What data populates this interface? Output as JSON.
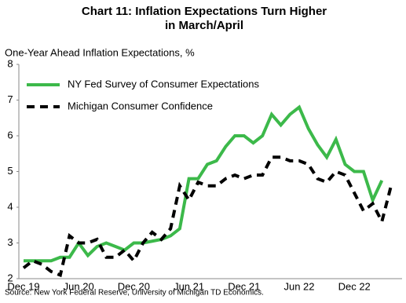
{
  "chart_data": {
    "type": "line",
    "title": "Chart 11: Inflation Expectations Turn Higher in March/April",
    "ylabel": "One-Year Ahead Inflation Expectations, %",
    "source": "Source: New York Federal Reserve, University of Michigan TD Economics.",
    "categories": [
      "Dec 19",
      null,
      null,
      null,
      null,
      null,
      "Jun 20",
      null,
      null,
      null,
      null,
      null,
      "Dec 20",
      null,
      null,
      null,
      null,
      null,
      "Jun 21",
      null,
      null,
      null,
      null,
      null,
      "Dec 21",
      null,
      null,
      null,
      null,
      null,
      "Jun 22",
      null,
      null,
      null,
      null,
      null,
      "Dec 22",
      null,
      null,
      null,
      null
    ],
    "series": [
      {
        "name": "NY Fed Survey of Consumer Expectations",
        "color": "#3cb94a",
        "dash": false,
        "values": [
          2.5,
          2.5,
          2.5,
          2.5,
          2.6,
          2.6,
          3.0,
          2.65,
          2.9,
          3.0,
          2.9,
          2.8,
          3.0,
          3.0,
          3.05,
          3.1,
          3.2,
          3.4,
          4.8,
          4.8,
          5.2,
          5.3,
          5.7,
          6.0,
          6.0,
          5.8,
          6.0,
          6.6,
          6.3,
          6.6,
          6.8,
          6.2,
          5.75,
          5.4,
          5.9,
          5.2,
          5.0,
          5.0,
          4.2,
          4.75,
          null
        ]
      },
      {
        "name": "Michigan Consumer Confidence",
        "color": "#000000",
        "dash": true,
        "values": [
          2.3,
          2.5,
          2.4,
          2.2,
          2.1,
          3.2,
          3.0,
          3.0,
          3.1,
          2.6,
          2.6,
          2.8,
          2.5,
          3.0,
          3.3,
          3.1,
          3.4,
          4.6,
          4.2,
          4.7,
          4.6,
          4.6,
          4.8,
          4.9,
          4.8,
          4.9,
          4.9,
          5.4,
          5.4,
          5.3,
          5.3,
          5.2,
          4.8,
          4.7,
          5.0,
          4.9,
          4.4,
          3.9,
          4.1,
          3.6,
          4.6
        ]
      }
    ],
    "ylim": [
      2,
      8
    ],
    "yticks": [
      2,
      3,
      4,
      5,
      6,
      7,
      8
    ],
    "grid": false,
    "legend": "upper left"
  }
}
